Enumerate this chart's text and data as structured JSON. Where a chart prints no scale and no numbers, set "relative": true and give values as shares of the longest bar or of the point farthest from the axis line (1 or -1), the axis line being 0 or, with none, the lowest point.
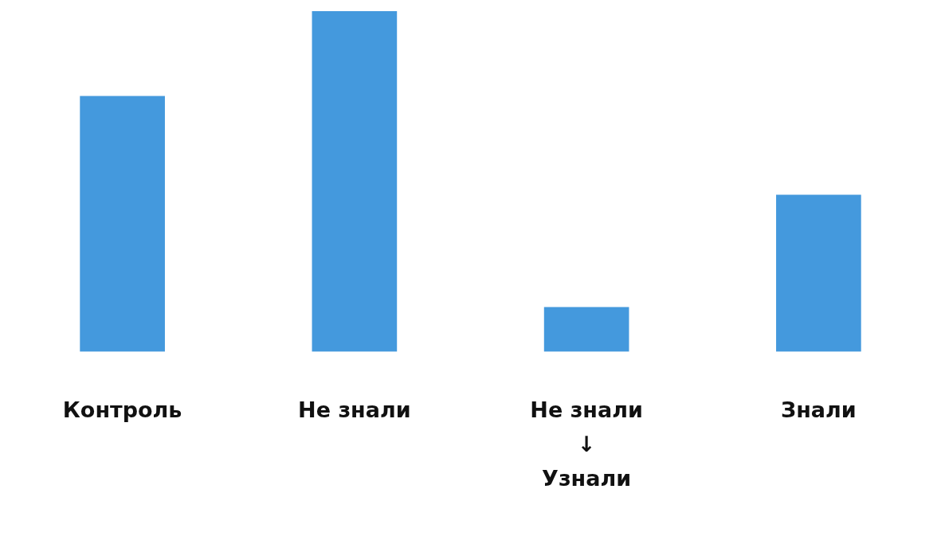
{
  "chart_data": {
    "type": "bar",
    "relative": true,
    "categories": [
      "Контроль",
      "Не знали",
      "Не знали\n↓\nУзнали",
      "Знали"
    ],
    "values": [
      0.75,
      1,
      0.13,
      0.46
    ],
    "color": "#4499dd"
  }
}
